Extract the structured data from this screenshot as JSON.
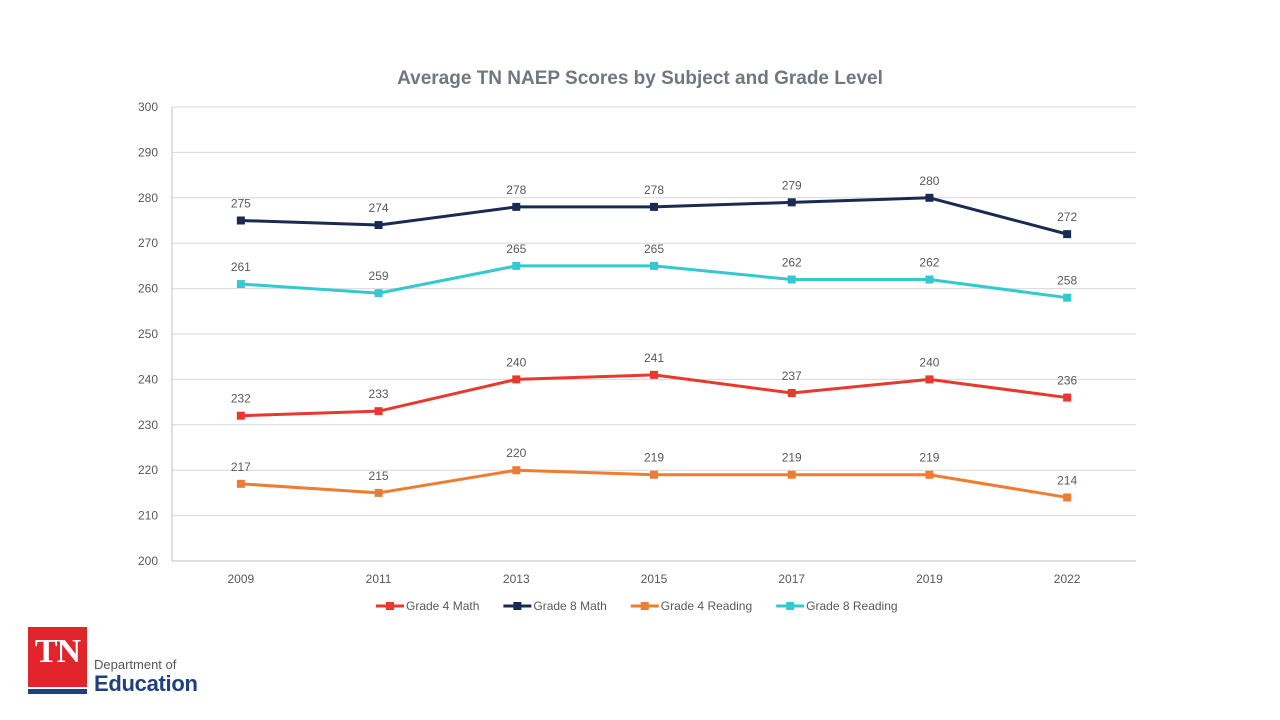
{
  "chart_data": {
    "type": "line",
    "title": "Average TN NAEP Scores by Subject and Grade Level",
    "xlabel": "",
    "ylabel": "",
    "ylim": [
      200,
      300
    ],
    "yticks": [
      300,
      290,
      280,
      270,
      260,
      250,
      240,
      230,
      220,
      210,
      200
    ],
    "categories": [
      "2009",
      "2011",
      "2013",
      "2015",
      "2017",
      "2019",
      "2022"
    ],
    "grid": true,
    "legend_position": "bottom",
    "series": [
      {
        "name": "Grade 4 Math",
        "color": "#e8392f",
        "values": [
          232,
          233,
          240,
          241,
          237,
          240,
          236
        ]
      },
      {
        "name": "Grade 8 Math",
        "color": "#1a2b52",
        "values": [
          275,
          274,
          278,
          278,
          279,
          280,
          272
        ]
      },
      {
        "name": "Grade 4 Reading",
        "color": "#ee7d31",
        "values": [
          217,
          215,
          220,
          219,
          219,
          219,
          214
        ]
      },
      {
        "name": "Grade 8 Reading",
        "color": "#33c9cf",
        "values": [
          261,
          259,
          265,
          265,
          262,
          262,
          258
        ]
      }
    ]
  },
  "logo": {
    "box_text": "TN",
    "department": "Department of",
    "education": "Education"
  }
}
